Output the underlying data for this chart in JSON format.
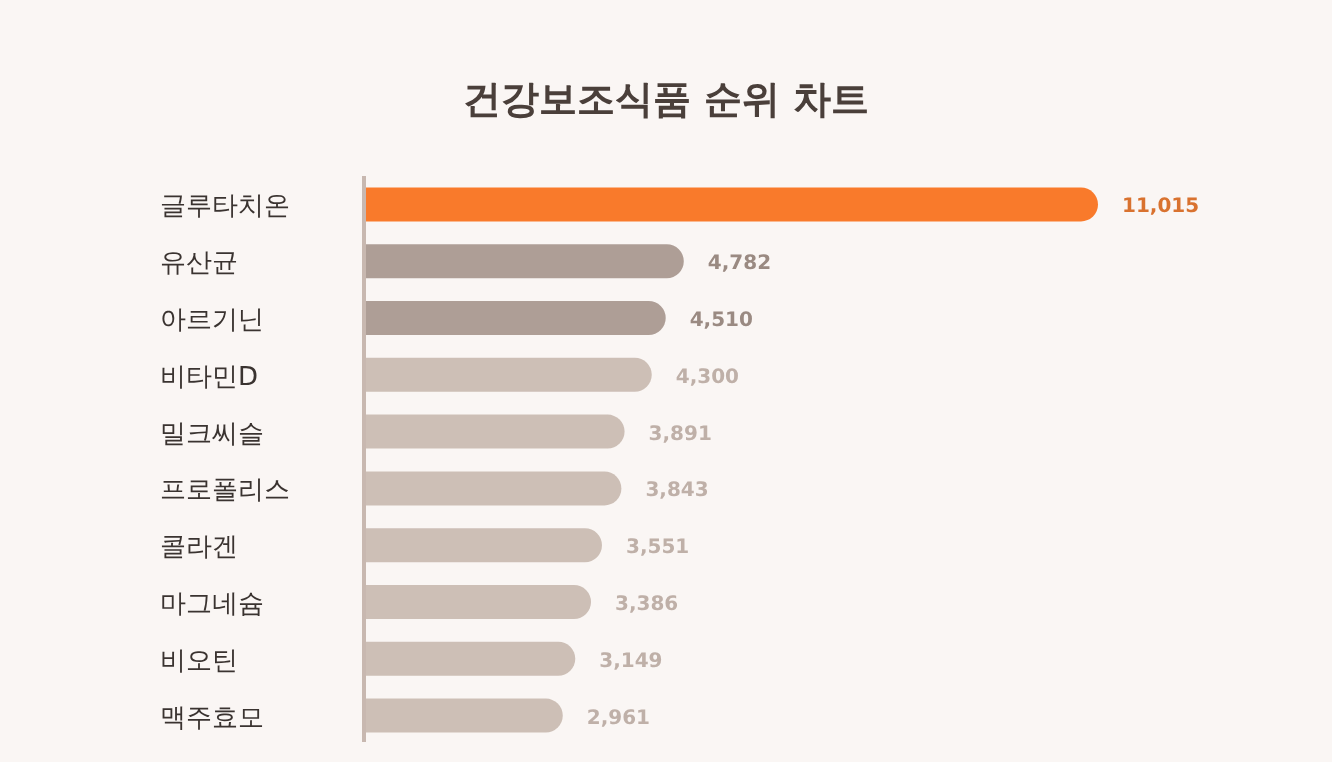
{
  "chart_data": {
    "type": "bar",
    "orientation": "horizontal",
    "title": "건강보조식품 순위 차트",
    "categories": [
      "글루타치온",
      "유산균",
      "아르기닌",
      "비타민D",
      "밀크씨슬",
      "프로폴리스",
      "콜라겐",
      "마그네슘",
      "비오틴",
      "맥주효모"
    ],
    "values": [
      11015,
      4782,
      4510,
      4300,
      3891,
      3843,
      3551,
      3386,
      3149,
      2961
    ],
    "value_labels": [
      "11,015",
      "4,782",
      "4,510",
      "4,300",
      "3,891",
      "3,843",
      "3,551",
      "3,386",
      "3,149",
      "2,961"
    ],
    "colors": [
      "#f97a2b",
      "#ae9e96",
      "#ae9e96",
      "#cdbfb6",
      "#cdbfb6",
      "#cdbfb6",
      "#cdbfb6",
      "#cdbfb6",
      "#cdbfb6",
      "#cdbfb6"
    ],
    "xlim": [
      0,
      11015
    ]
  }
}
